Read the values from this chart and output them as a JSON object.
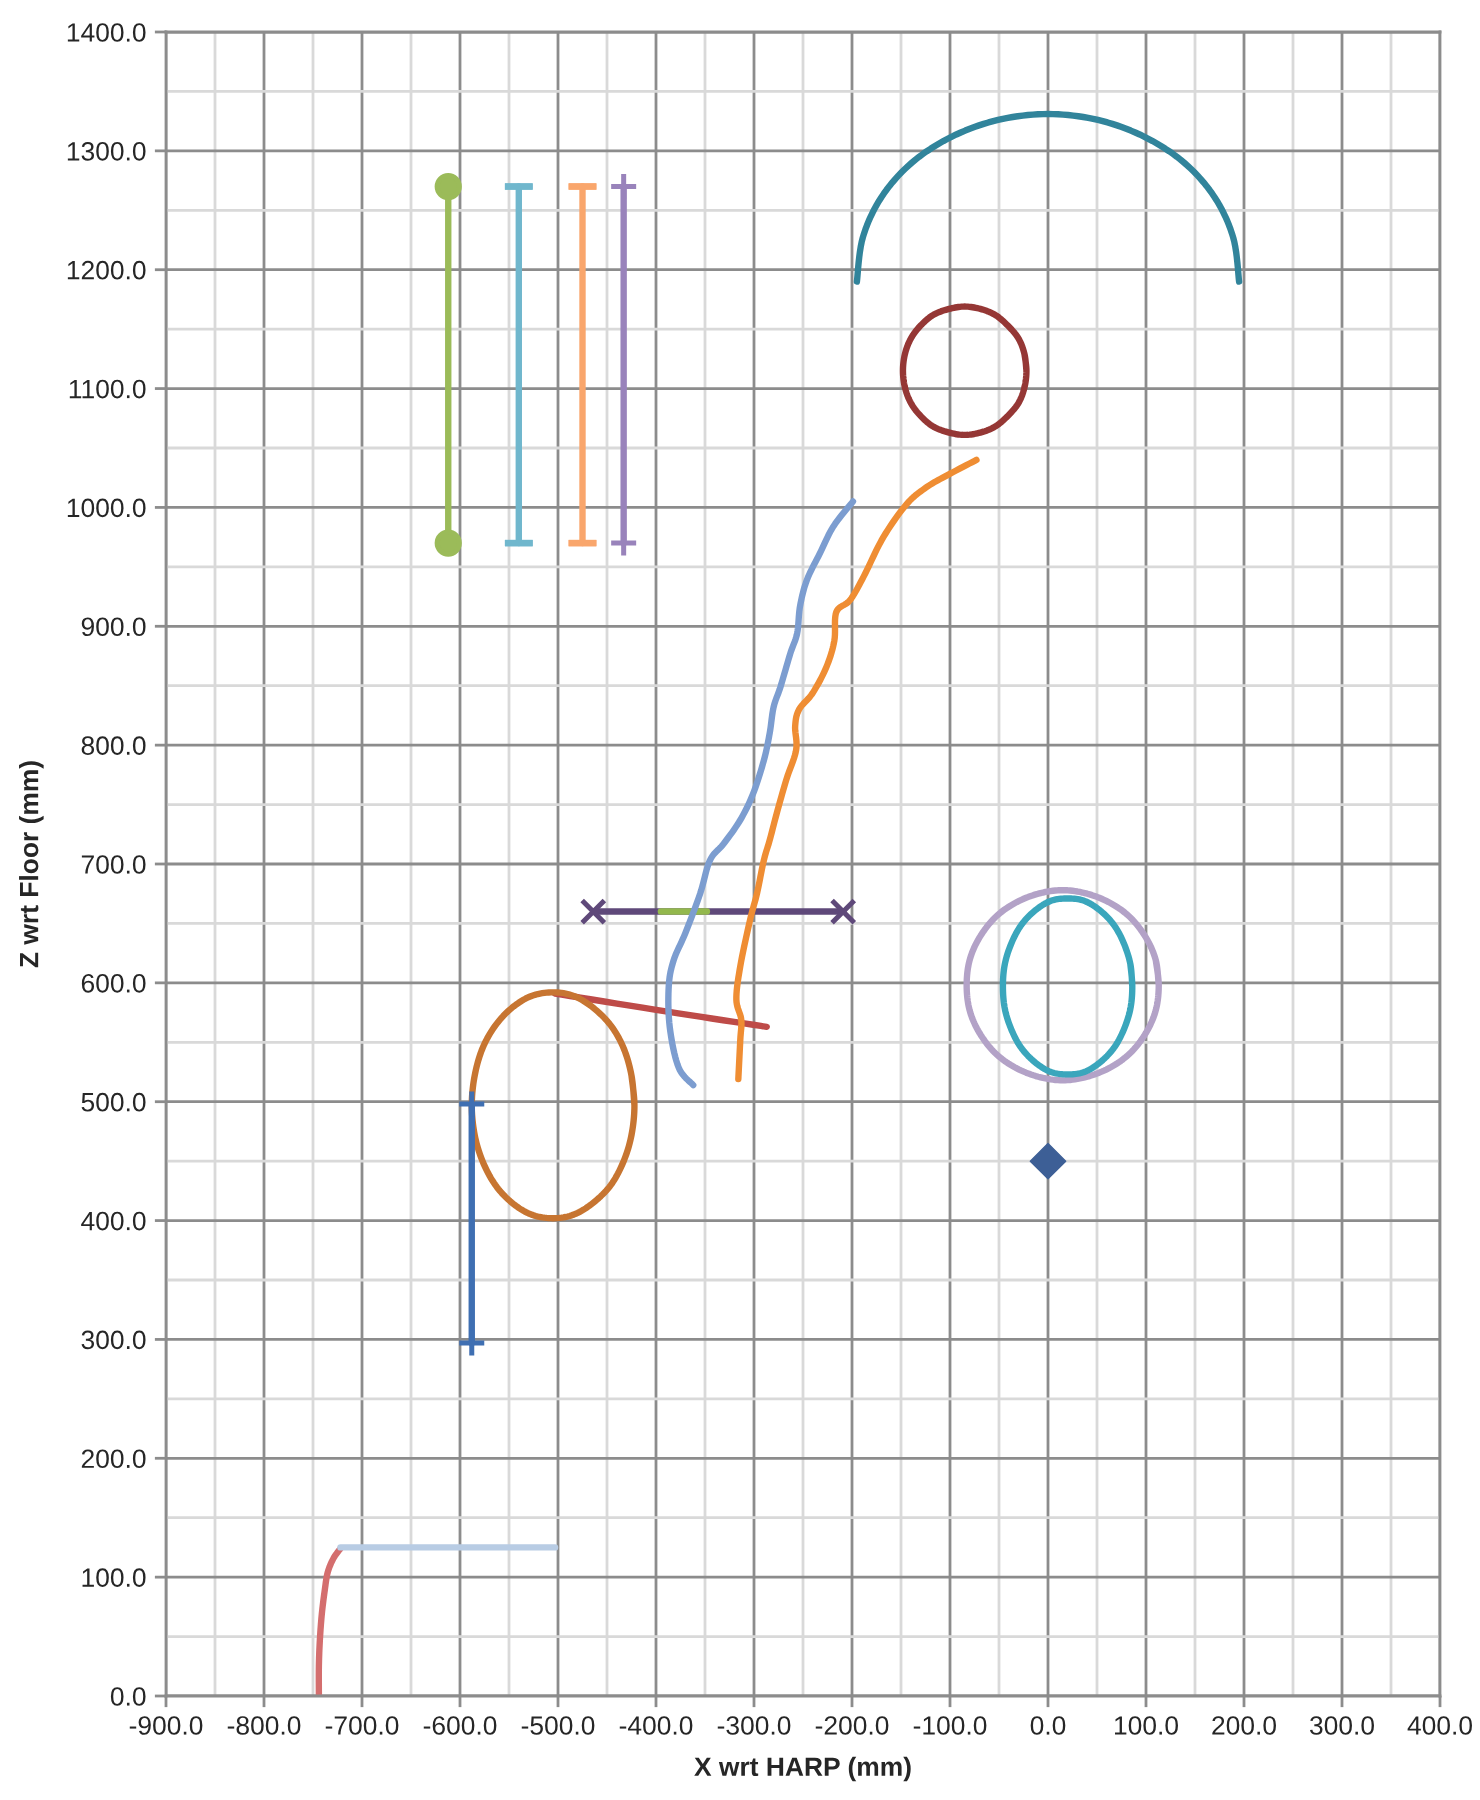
{
  "chart_data": {
    "type": "line",
    "xlabel": "X wrt HARP (mm)",
    "ylabel": "Z wrt Floor (mm)",
    "xlim": [
      -900,
      400
    ],
    "ylim": [
      0,
      1400
    ],
    "grid": true,
    "xticks": [
      {
        "value": -900,
        "label": "-900.0"
      },
      {
        "value": -850,
        "label": null
      },
      {
        "value": -800,
        "label": "-800.0"
      },
      {
        "value": -750,
        "label": null
      },
      {
        "value": -700,
        "label": "-700.0"
      },
      {
        "value": -650,
        "label": null
      },
      {
        "value": -600,
        "label": "-600.0"
      },
      {
        "value": -550,
        "label": null
      },
      {
        "value": -500,
        "label": "-500.0"
      },
      {
        "value": -450,
        "label": null
      },
      {
        "value": -400,
        "label": "-400.0"
      },
      {
        "value": -350,
        "label": null
      },
      {
        "value": -300,
        "label": "-300.0"
      },
      {
        "value": -250,
        "label": null
      },
      {
        "value": -200,
        "label": "-200.0"
      },
      {
        "value": -150,
        "label": null
      },
      {
        "value": -100,
        "label": "-100.0"
      },
      {
        "value": -50,
        "label": null
      },
      {
        "value": 0,
        "label": "0.0"
      },
      {
        "value": 50,
        "label": null
      },
      {
        "value": 100,
        "label": "100.0"
      },
      {
        "value": 150,
        "label": null
      },
      {
        "value": 200,
        "label": "200.0"
      },
      {
        "value": 250,
        "label": null
      },
      {
        "value": 300,
        "label": "300.0"
      },
      {
        "value": 350,
        "label": null
      },
      {
        "value": 400,
        "label": "400.0"
      }
    ],
    "yticks": [
      {
        "value": 0,
        "label": "0.0"
      },
      {
        "value": 50,
        "label": null
      },
      {
        "value": 100,
        "label": "100.0"
      },
      {
        "value": 150,
        "label": null
      },
      {
        "value": 200,
        "label": "200.0"
      },
      {
        "value": 250,
        "label": null
      },
      {
        "value": 300,
        "label": "300.0"
      },
      {
        "value": 350,
        "label": null
      },
      {
        "value": 400,
        "label": "400.0"
      },
      {
        "value": 450,
        "label": null
      },
      {
        "value": 500,
        "label": "500.0"
      },
      {
        "value": 550,
        "label": null
      },
      {
        "value": 600,
        "label": "600.0"
      },
      {
        "value": 650,
        "label": null
      },
      {
        "value": 700,
        "label": "700.0"
      },
      {
        "value": 750,
        "label": null
      },
      {
        "value": 800,
        "label": "800.0"
      },
      {
        "value": 850,
        "label": null
      },
      {
        "value": 900,
        "label": "900.0"
      },
      {
        "value": 950,
        "label": null
      },
      {
        "value": 1000,
        "label": "1000.0"
      },
      {
        "value": 1050,
        "label": null
      },
      {
        "value": 1100,
        "label": "1100.0"
      },
      {
        "value": 1150,
        "label": null
      },
      {
        "value": 1200,
        "label": "1200.0"
      },
      {
        "value": 1250,
        "label": null
      },
      {
        "value": 1300,
        "label": "1300.0"
      },
      {
        "value": 1350,
        "label": null
      },
      {
        "value": 1400,
        "label": "1400.0"
      }
    ],
    "series": [
      {
        "color": "#9bbb59",
        "marker": "circle",
        "x": [
          -612,
          -612
        ],
        "values": [
          1270,
          970
        ]
      },
      {
        "color": "#70b7cd",
        "x": [
          -540,
          -540
        ],
        "values": [
          1270,
          970
        ],
        "errors": [
          0,
          0
        ]
      },
      {
        "color": "#f9a66c",
        "x": [
          -475,
          -475
        ],
        "values": [
          1270,
          970
        ],
        "errors": [
          0,
          0
        ]
      },
      {
        "color": "#9983bb",
        "marker": "plus",
        "x": [
          -433,
          -433
        ],
        "values": [
          1270,
          970
        ]
      },
      {
        "color": "#31849b",
        "x": [
          -195,
          -189,
          -170,
          -139,
          -98,
          -51,
          0,
          51,
          98,
          139,
          170,
          189,
          195
        ],
        "values": [
          1190,
          1227,
          1261,
          1290,
          1312,
          1326,
          1331,
          1326,
          1312,
          1290,
          1261,
          1227,
          1190
        ]
      },
      {
        "color": "#953735",
        "x": [
          -22,
          -24,
          -30,
          -41,
          -54,
          -69,
          -85,
          -101,
          -117,
          -130,
          -140,
          -146,
          -148,
          -146,
          -140,
          -130,
          -117,
          -101,
          -85,
          -69,
          -54,
          -41,
          -30,
          -24,
          -22,
          -24
        ],
        "values": [
          1115,
          1129,
          1142,
          1153,
          1162,
          1167,
          1169,
          1167,
          1162,
          1153,
          1142,
          1129,
          1115,
          1101,
          1088,
          1077,
          1068,
          1063,
          1061,
          1063,
          1068,
          1077,
          1088,
          1101,
          1115,
          1129
        ]
      },
      {
        "color": "#5f497a",
        "marker": "x",
        "x": [
          -464,
          -209
        ],
        "values": [
          660,
          660
        ]
      },
      {
        "color": "#93b84d",
        "x": [
          -395,
          -348
        ],
        "values": [
          660,
          660
        ]
      },
      {
        "color": "#be4b48",
        "x": [
          -503,
          -390,
          -287
        ],
        "values": [
          591,
          576,
          563
        ]
      },
      {
        "color": "#c77531",
        "x": [
          -422,
          -425,
          -433,
          -446,
          -464,
          -484,
          -505,
          -527,
          -547,
          -564,
          -577,
          -585,
          -588,
          -585,
          -577,
          -564,
          -547,
          -527,
          -505,
          -484,
          -464,
          -446,
          -433,
          -425,
          -422,
          -425
        ],
        "values": [
          497,
          522,
          545,
          564,
          579,
          589,
          592,
          589,
          579,
          564,
          545,
          522,
          497,
          472,
          450,
          430,
          415,
          405,
          402,
          405,
          415,
          430,
          450,
          472,
          497,
          522
        ]
      },
      {
        "color": "#7c9dd0",
        "x": [
          -362,
          -377,
          -386,
          -387,
          -382,
          -370,
          -355,
          -345,
          -331,
          -314,
          -301,
          -290,
          -284,
          -280,
          -273,
          -263,
          -256,
          -253,
          -246,
          -233,
          -219,
          -199
        ],
        "values": [
          514,
          529,
          563,
          597,
          619,
          642,
          675,
          703,
          717,
          737,
          759,
          787,
          810,
          832,
          849,
          877,
          894,
          917,
          939,
          961,
          984,
          1005
        ]
      },
      {
        "color": "#ef8d33",
        "x": [
          -316,
          -314,
          -313,
          -318,
          -314,
          -304,
          -297,
          -290,
          -284,
          -277,
          -267,
          -257,
          -258,
          -254,
          -240,
          -226,
          -218,
          -216,
          -202,
          -188,
          -168,
          -144,
          -124,
          -103,
          -73
        ],
        "values": [
          519,
          552,
          569,
          586,
          614,
          653,
          675,
          703,
          720,
          742,
          771,
          796,
          816,
          830,
          844,
          866,
          888,
          912,
          922,
          942,
          975,
          1003,
          1017,
          1027,
          1040
        ]
      },
      {
        "color": "#3f6fb2",
        "marker": "plus",
        "x": [
          -588,
          -588
        ],
        "values": [
          498,
          297
        ]
      },
      {
        "color": "#b3a2c7",
        "x": [
          113,
          110,
          100,
          84,
          64,
          40,
          15,
          -10,
          -34,
          -54,
          -70,
          -80,
          -83,
          -80,
          -70,
          -54,
          -34,
          -10,
          15,
          40,
          64,
          84,
          100,
          110,
          113,
          110
        ],
        "values": [
          598,
          619,
          638,
          655,
          667,
          675,
          678,
          675,
          667,
          655,
          638,
          619,
          598,
          577,
          558,
          541,
          529,
          521,
          518,
          521,
          529,
          541,
          558,
          577,
          598,
          619
        ]
      },
      {
        "color": "#3aa6bc",
        "x": [
          86,
          84,
          77,
          67,
          53,
          37,
          20,
          3,
          -13,
          -27,
          -37,
          -44,
          -46,
          -44,
          -37,
          -27,
          -13,
          3,
          20,
          37,
          53,
          67,
          77,
          84,
          86,
          84
        ],
        "values": [
          597,
          616,
          634,
          649,
          661,
          669,
          671,
          669,
          661,
          649,
          634,
          616,
          597,
          578,
          560,
          545,
          533,
          525,
          523,
          525,
          533,
          545,
          560,
          578,
          597,
          616
        ]
      },
      {
        "type": "scatter",
        "color": "#3d5f96",
        "marker": "diamond",
        "x": [
          0
        ],
        "values": [
          450
        ]
      },
      {
        "color": "#d46e6e",
        "x": [
          -744,
          -744,
          -743,
          -741,
          -738,
          -735,
          -729,
          -722
        ],
        "values": [
          0,
          25,
          47,
          69,
          89,
          104,
          116,
          124
        ]
      },
      {
        "color": "#b8cce4",
        "x": [
          -722,
          -503
        ],
        "values": [
          125,
          125
        ]
      }
    ]
  }
}
